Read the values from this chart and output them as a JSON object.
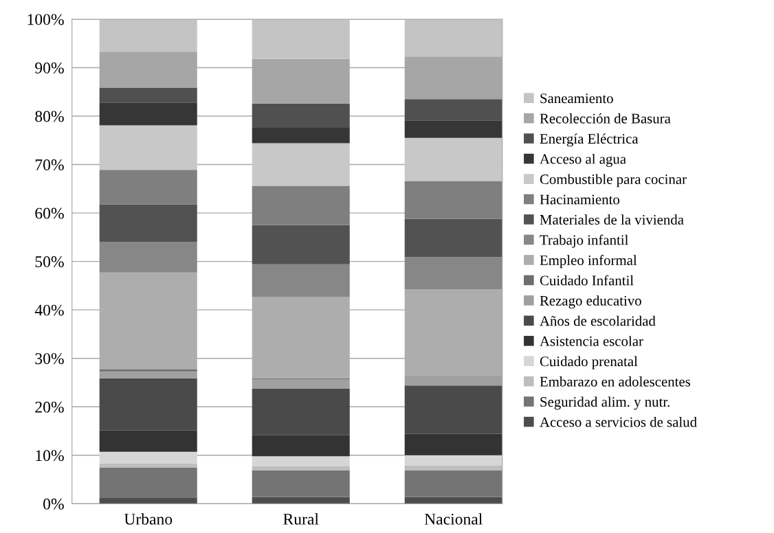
{
  "chart_data": {
    "type": "bar",
    "stacked": true,
    "categories": [
      "Urbano",
      "Rural",
      "Nacional"
    ],
    "ylim": [
      0,
      100
    ],
    "yticks": [
      {
        "value": 0,
        "label": "0%"
      },
      {
        "value": 10,
        "label": "10%"
      },
      {
        "value": 20,
        "label": "20%"
      },
      {
        "value": 30,
        "label": "30%"
      },
      {
        "value": 40,
        "label": "40%"
      },
      {
        "value": 50,
        "label": "50%"
      },
      {
        "value": 60,
        "label": "60%"
      },
      {
        "value": 70,
        "label": "70%"
      },
      {
        "value": 80,
        "label": "80%"
      },
      {
        "value": 90,
        "label": "90%"
      },
      {
        "value": 100,
        "label": "100%"
      }
    ],
    "grid": "y",
    "legend": "right",
    "series": [
      {
        "name": "Acceso a servicios de salud",
        "color": "#4d4d4d",
        "values": [
          1.3,
          1.4,
          1.4
        ]
      },
      {
        "name": "Seguridad alim. y nutr.",
        "color": "#747474",
        "values": [
          6.1,
          5.5,
          5.5
        ]
      },
      {
        "name": "Embarazo en adolescentes",
        "color": "#bdbdbd",
        "values": [
          0.9,
          0.8,
          1.0
        ]
      },
      {
        "name": "Cuidado prenatal",
        "color": "#d6d6d6",
        "values": [
          2.4,
          2.1,
          2.1
        ]
      },
      {
        "name": "Asistencia escolar",
        "color": "#333333",
        "values": [
          4.4,
          4.4,
          4.4
        ]
      },
      {
        "name": "Años de escolaridad",
        "color": "#4a4a4a",
        "values": [
          10.8,
          9.6,
          10.0
        ]
      },
      {
        "name": "Rezago educativo",
        "color": "#a0a0a0",
        "values": [
          1.4,
          1.9,
          2.0
        ]
      },
      {
        "name": "Cuidado Infantil",
        "color": "#6e6e6e",
        "values": [
          0.4,
          0.2,
          0.1
        ]
      },
      {
        "name": "Empleo informal",
        "color": "#adadad",
        "values": [
          20.0,
          16.8,
          17.7
        ]
      },
      {
        "name": "Trabajo infantil",
        "color": "#878787",
        "values": [
          6.3,
          6.7,
          6.7
        ]
      },
      {
        "name": "Materiales de la vivienda",
        "color": "#525252",
        "values": [
          7.8,
          8.1,
          7.9
        ]
      },
      {
        "name": "Hacinamiento",
        "color": "#7f7f7f",
        "values": [
          7.1,
          8.1,
          7.8
        ]
      },
      {
        "name": "Combustible para cocinar",
        "color": "#c8c8c8",
        "values": [
          9.2,
          8.8,
          8.9
        ]
      },
      {
        "name": "Acceso al agua",
        "color": "#363636",
        "values": [
          4.7,
          3.2,
          3.6
        ]
      },
      {
        "name": "Energía Eléctrica",
        "color": "#505050",
        "values": [
          3.1,
          5.0,
          4.4
        ]
      },
      {
        "name": "Recolección de Basura",
        "color": "#a6a6a6",
        "values": [
          7.4,
          9.2,
          8.8
        ]
      },
      {
        "name": "Saneamiento",
        "color": "#c4c4c4",
        "values": [
          6.7,
          8.2,
          7.7
        ]
      }
    ]
  }
}
